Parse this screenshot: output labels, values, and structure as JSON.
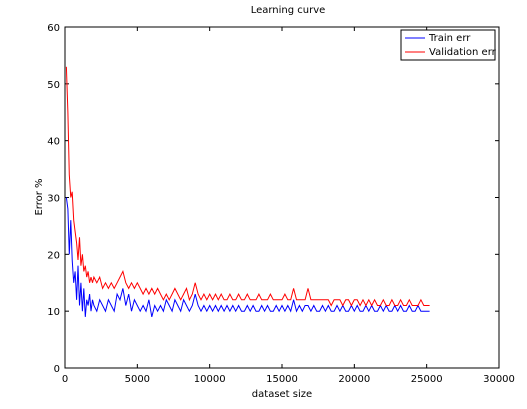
{
  "chart_data": {
    "type": "line",
    "title": "Learning curve",
    "xlabel": "dataset size",
    "ylabel": "Error %",
    "xlim": [
      0,
      30000
    ],
    "ylim": [
      0,
      60
    ],
    "xticks": [
      0,
      5000,
      10000,
      15000,
      20000,
      25000,
      30000
    ],
    "yticks": [
      0,
      10,
      20,
      30,
      40,
      50,
      60
    ],
    "legend_position": "top-right",
    "grid": false,
    "x": [
      100,
      200,
      300,
      400,
      500,
      600,
      700,
      800,
      900,
      1000,
      1100,
      1200,
      1300,
      1400,
      1500,
      1600,
      1700,
      1800,
      1900,
      2000,
      2200,
      2400,
      2600,
      2800,
      3000,
      3200,
      3400,
      3600,
      3800,
      4000,
      4200,
      4400,
      4600,
      4800,
      5000,
      5200,
      5400,
      5600,
      5800,
      6000,
      6200,
      6400,
      6600,
      6800,
      7000,
      7200,
      7400,
      7600,
      7800,
      8000,
      8200,
      8400,
      8600,
      8800,
      9000,
      9200,
      9400,
      9600,
      9800,
      10000,
      10200,
      10400,
      10600,
      10800,
      11000,
      11200,
      11400,
      11600,
      11800,
      12000,
      12200,
      12400,
      12600,
      12800,
      13000,
      13200,
      13400,
      13600,
      13800,
      14000,
      14200,
      14400,
      14600,
      14800,
      15000,
      15200,
      15400,
      15600,
      15800,
      16000,
      16200,
      16400,
      16600,
      16800,
      17000,
      17200,
      17400,
      17600,
      17800,
      18000,
      18200,
      18400,
      18600,
      18800,
      19000,
      19200,
      19400,
      19600,
      19800,
      20000,
      20200,
      20400,
      20600,
      20800,
      21000,
      21200,
      21400,
      21600,
      21800,
      22000,
      22200,
      22400,
      22600,
      22800,
      23000,
      23200,
      23400,
      23600,
      23800,
      24000,
      24200,
      24400,
      24600,
      24800,
      25000,
      25200
    ],
    "series": [
      {
        "name": "Train err",
        "color": "#0000ff",
        "values": [
          30,
          28,
          20,
          26,
          19,
          15,
          17,
          12,
          18,
          11,
          15,
          10,
          14,
          9,
          12,
          11,
          13,
          10,
          12,
          11,
          10,
          12,
          11,
          10,
          12,
          11,
          10,
          13,
          12,
          14,
          11,
          13,
          10,
          12,
          11,
          10,
          11,
          10,
          12,
          9,
          11,
          10,
          11,
          10,
          12,
          11,
          10,
          12,
          11,
          10,
          12,
          11,
          10,
          11,
          13,
          11,
          10,
          11,
          10,
          11,
          10,
          11,
          10,
          11,
          10,
          11,
          10,
          11,
          10,
          11,
          10,
          10,
          11,
          10,
          11,
          10,
          10,
          11,
          10,
          11,
          10,
          10,
          11,
          10,
          11,
          10,
          11,
          10,
          12,
          10,
          11,
          10,
          11,
          11,
          10,
          11,
          10,
          10,
          11,
          10,
          11,
          10,
          10,
          11,
          10,
          11,
          10,
          10,
          11,
          10,
          11,
          10,
          10,
          11,
          10,
          11,
          10,
          10,
          11,
          10,
          11,
          10,
          10,
          11,
          10,
          11,
          10,
          10,
          11,
          10,
          10,
          11,
          10,
          10,
          10,
          10
        ]
      },
      {
        "name": "Validation err",
        "color": "#ff0000",
        "values": [
          53,
          45,
          34,
          30,
          31,
          26,
          24,
          22,
          19,
          23,
          18,
          20,
          17,
          18,
          16,
          17,
          15,
          16,
          15,
          16,
          15,
          16,
          14,
          15,
          14,
          15,
          14,
          15,
          16,
          17,
          15,
          14,
          15,
          14,
          15,
          14,
          13,
          14,
          13,
          14,
          13,
          14,
          13,
          12,
          13,
          12,
          13,
          14,
          13,
          12,
          13,
          14,
          12,
          13,
          15,
          13,
          12,
          13,
          12,
          13,
          12,
          13,
          12,
          13,
          12,
          12,
          13,
          12,
          12,
          13,
          12,
          12,
          13,
          12,
          12,
          12,
          13,
          12,
          12,
          12,
          13,
          12,
          12,
          12,
          12,
          13,
          12,
          12,
          14,
          12,
          12,
          12,
          12,
          14,
          12,
          12,
          12,
          12,
          12,
          12,
          12,
          11,
          12,
          12,
          12,
          11,
          12,
          12,
          11,
          12,
          12,
          11,
          12,
          11,
          12,
          11,
          12,
          11,
          11,
          12,
          11,
          11,
          12,
          11,
          11,
          12,
          11,
          11,
          12,
          11,
          11,
          11,
          12,
          11,
          11,
          11
        ]
      }
    ]
  }
}
